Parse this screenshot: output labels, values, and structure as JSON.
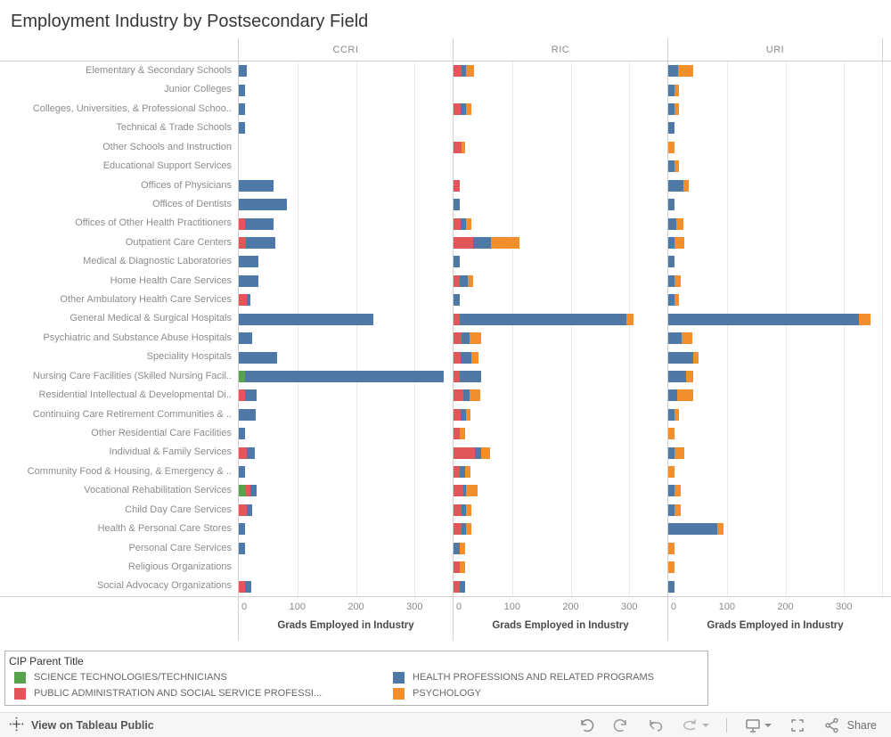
{
  "title": "Employment Industry by Postsecondary Field",
  "chart_data": {
    "type": "bar",
    "orientation": "horizontal stacked",
    "panels": [
      "CCRI",
      "RIC",
      "URI"
    ],
    "xlabel": "Grads Employed in Industry",
    "x_ticks": [
      0,
      100,
      200,
      300
    ],
    "xlim": [
      0,
      365
    ],
    "grid": true,
    "legend_title": "CIP Parent Title",
    "series": [
      {
        "name": "SCIENCE TECHNOLOGIES/TECHNICIANS",
        "color": "#59a14f"
      },
      {
        "name": "PUBLIC ADMINISTRATION AND SOCIAL SERVICE PROFESSIONS",
        "color": "#e15759"
      },
      {
        "name": "HEALTH PROFESSIONS AND RELATED PROGRAMS",
        "color": "#4e79a7"
      },
      {
        "name": "PSYCHOLOGY",
        "color": "#f28e2b"
      }
    ],
    "categories": [
      "Elementary & Secondary Schools",
      "Junior Colleges",
      "Colleges, Universities, & Professional Schoo..",
      "Technical & Trade Schools",
      "Other Schools and Instruction",
      "Educational Support Services",
      "Offices of Physicians",
      "Offices of Dentists",
      "Offices of Other Health Practitioners",
      "Outpatient Care Centers",
      "Medical & Diagnostic Laboratories",
      "Home Health Care Services",
      "Other Ambulatory Health Care Services",
      "General Medical & Surgical Hospitals",
      "Psychiatric and Substance Abuse Hospitals",
      "Speciality Hospitals",
      "Nursing Care Facilities (Skilled Nursing Facil..",
      "Residential Intellectual & Developmental Di..",
      "Continuing Care Retirement Communities & ..",
      "Other Residential Care Facilities",
      "Individual & Family Services",
      "Community Food & Housing, & Emergency & ..",
      "Vocational Rehabilitation Services",
      "Child Day Care Services",
      "Health & Personal Care Stores",
      "Personal Care Services",
      "Religious Organizations",
      "Social Advocacy Organizations"
    ],
    "values_note": "per row: [SCIENCE TECH, PUBLIC ADMIN, HEALTH PROFESSIONS, PSYCHOLOGY]",
    "values": {
      "CCRI": [
        [
          0,
          0,
          13,
          0
        ],
        [
          0,
          0,
          10,
          0
        ],
        [
          0,
          0,
          10,
          0
        ],
        [
          0,
          0,
          10,
          0
        ],
        [
          0,
          0,
          0,
          0
        ],
        [
          0,
          0,
          0,
          0
        ],
        [
          0,
          0,
          60,
          0
        ],
        [
          0,
          0,
          82,
          0
        ],
        [
          0,
          11,
          49,
          0
        ],
        [
          0,
          12,
          50,
          0
        ],
        [
          0,
          0,
          34,
          0
        ],
        [
          0,
          0,
          34,
          0
        ],
        [
          0,
          13,
          7,
          0
        ],
        [
          0,
          0,
          229,
          0
        ],
        [
          0,
          0,
          22,
          0
        ],
        [
          0,
          0,
          66,
          0
        ],
        [
          11,
          0,
          339,
          0
        ],
        [
          0,
          11,
          19,
          0
        ],
        [
          0,
          0,
          29,
          0
        ],
        [
          0,
          0,
          11,
          0
        ],
        [
          0,
          13,
          15,
          0
        ],
        [
          0,
          0,
          11,
          0
        ],
        [
          12,
          8,
          11,
          0
        ],
        [
          0,
          13,
          10,
          0
        ],
        [
          0,
          0,
          11,
          0
        ],
        [
          0,
          0,
          11,
          0
        ],
        [
          0,
          0,
          0,
          0
        ],
        [
          0,
          11,
          11,
          0
        ]
      ],
      "RIC": [
        [
          0,
          13,
          9,
          13
        ],
        [
          0,
          0,
          0,
          0
        ],
        [
          0,
          12,
          9,
          9
        ],
        [
          0,
          0,
          0,
          0
        ],
        [
          0,
          13,
          0,
          7
        ],
        [
          0,
          0,
          0,
          0
        ],
        [
          0,
          10,
          0,
          0
        ],
        [
          0,
          0,
          10,
          0
        ],
        [
          0,
          12,
          9,
          9
        ],
        [
          0,
          34,
          30,
          48
        ],
        [
          0,
          0,
          10,
          0
        ],
        [
          0,
          10,
          15,
          9
        ],
        [
          0,
          0,
          10,
          0
        ],
        [
          0,
          10,
          285,
          12
        ],
        [
          0,
          14,
          14,
          20
        ],
        [
          0,
          12,
          19,
          11
        ],
        [
          0,
          10,
          37,
          0
        ],
        [
          0,
          17,
          11,
          17
        ],
        [
          0,
          12,
          9,
          8
        ],
        [
          0,
          10,
          0,
          10
        ],
        [
          0,
          36,
          11,
          15
        ],
        [
          0,
          10,
          10,
          9
        ],
        [
          0,
          16,
          6,
          19
        ],
        [
          0,
          13,
          8,
          10
        ],
        [
          0,
          13,
          8,
          10
        ],
        [
          0,
          0,
          10,
          10
        ],
        [
          0,
          10,
          0,
          10
        ],
        [
          0,
          10,
          10,
          0
        ]
      ],
      "URI": [
        [
          0,
          0,
          16,
          26
        ],
        [
          0,
          0,
          11,
          8
        ],
        [
          0,
          0,
          11,
          8
        ],
        [
          0,
          0,
          10,
          0
        ],
        [
          0,
          0,
          0,
          10
        ],
        [
          0,
          0,
          11,
          8
        ],
        [
          0,
          0,
          26,
          9
        ],
        [
          0,
          0,
          10,
          0
        ],
        [
          0,
          0,
          14,
          12
        ],
        [
          0,
          0,
          10,
          17
        ],
        [
          0,
          0,
          10,
          0
        ],
        [
          0,
          0,
          11,
          10
        ],
        [
          0,
          0,
          11,
          7
        ],
        [
          0,
          0,
          325,
          21
        ],
        [
          0,
          0,
          23,
          18
        ],
        [
          0,
          0,
          42,
          10
        ],
        [
          0,
          0,
          31,
          12
        ],
        [
          0,
          0,
          15,
          28
        ],
        [
          0,
          0,
          11,
          7
        ],
        [
          0,
          0,
          0,
          10
        ],
        [
          0,
          0,
          10,
          17
        ],
        [
          0,
          0,
          0,
          10
        ],
        [
          0,
          0,
          10,
          12
        ],
        [
          0,
          0,
          10,
          12
        ],
        [
          0,
          0,
          84,
          11
        ],
        [
          0,
          0,
          0,
          10
        ],
        [
          0,
          0,
          0,
          10
        ],
        [
          0,
          0,
          10,
          0
        ]
      ]
    }
  },
  "legend": {
    "title": "CIP Parent Title",
    "items": [
      {
        "label": "SCIENCE TECHNOLOGIES/TECHNICIANS",
        "color": "#59a14f"
      },
      {
        "label": "HEALTH PROFESSIONS AND RELATED PROGRAMS",
        "color": "#4e79a7"
      },
      {
        "label": "PUBLIC ADMINISTRATION AND SOCIAL SERVICE PROFESSI...",
        "color": "#e15759"
      },
      {
        "label": "PSYCHOLOGY",
        "color": "#f28e2b"
      }
    ]
  },
  "toolbar": {
    "view_label": "View on Tableau Public",
    "share_label": "Share",
    "icons": [
      "tableau-logo-icon",
      "undo-icon",
      "redo-icon",
      "revert-icon",
      "refresh-icon",
      "download-icon",
      "fullscreen-icon",
      "share-icon"
    ]
  }
}
